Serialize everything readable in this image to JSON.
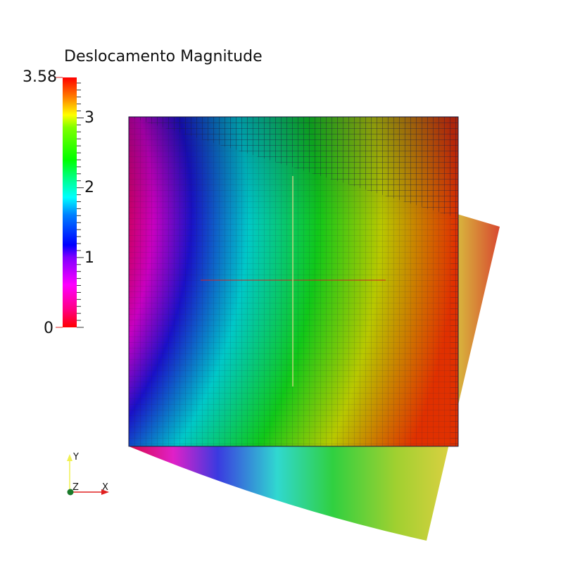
{
  "legend": {
    "title": "Deslocamento Magnitude",
    "range": [
      0,
      3.58
    ],
    "tick_labels": [
      "3.58",
      "3",
      "2",
      "1",
      "0"
    ],
    "colormap": "hsv-rainbow"
  },
  "axes_triad": {
    "x_label": "X",
    "y_label": "Y",
    "z_label": "Z",
    "x_color": "#e02020",
    "y_color": "#f0f050",
    "z_color": "#1a7a2a"
  },
  "colors": {
    "background": "#ffffff",
    "mesh_lines": "#1a1a3a",
    "crosshair_horizontal": "#d02020",
    "crosshair_vertical": "#e8e890"
  }
}
